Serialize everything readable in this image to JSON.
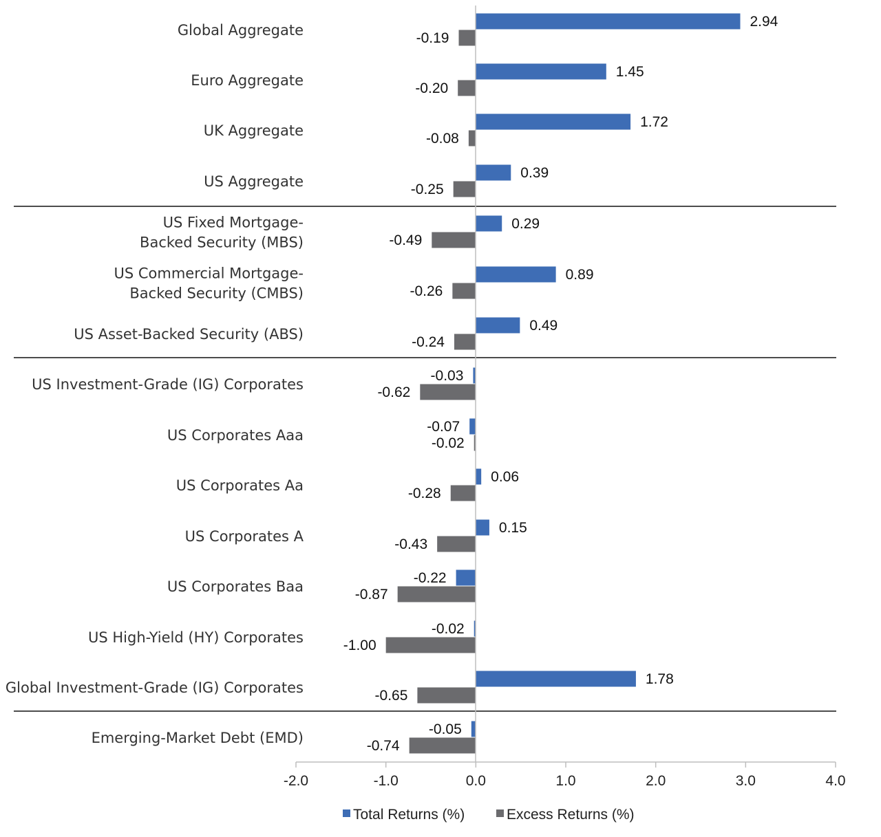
{
  "chart_data": {
    "type": "bar",
    "orientation": "horizontal",
    "title": "",
    "xlabel": "",
    "ylabel": "",
    "xlim": [
      -2.0,
      4.0
    ],
    "x_ticks": [
      "-2.0",
      "-1.0",
      "0.0",
      "1.0",
      "2.0",
      "3.0",
      "4.0"
    ],
    "x_tick_values": [
      -2,
      -1,
      0,
      1,
      2,
      3,
      4
    ],
    "grid": false,
    "legend_position": "bottom",
    "categories": [
      [
        "Global Aggregate"
      ],
      [
        "Euro Aggregate"
      ],
      [
        "UK Aggregate"
      ],
      [
        "US Aggregate"
      ],
      [
        "US Fixed Mortgage-",
        "Backed Security (MBS)"
      ],
      [
        "US Commercial Mortgage-",
        "Backed Security (CMBS)"
      ],
      [
        "US Asset-Backed Security (ABS)"
      ],
      [
        "US Investment-Grade (IG) Corporates"
      ],
      [
        "US Corporates Aaa"
      ],
      [
        "US Corporates Aa"
      ],
      [
        "US Corporates A"
      ],
      [
        "US Corporates Baa"
      ],
      [
        "US High-Yield (HY) Corporates"
      ],
      [
        "Global Investment-Grade (IG) Corporates"
      ],
      [
        "Emerging-Market Debt (EMD)"
      ]
    ],
    "series": [
      {
        "name": "Total Returns (%)",
        "color": "#3e6db5",
        "values": [
          2.94,
          1.45,
          1.72,
          0.39,
          0.29,
          0.89,
          0.49,
          -0.03,
          -0.07,
          0.06,
          0.15,
          -0.22,
          -0.02,
          1.78,
          -0.05
        ],
        "labels": [
          "2.94",
          "1.45",
          "1.72",
          "0.39",
          "0.29",
          "0.89",
          "0.49",
          "-0.03",
          "-0.07",
          "0.06",
          "0.15",
          "-0.22",
          "-0.02",
          "1.78",
          "-0.05"
        ]
      },
      {
        "name": "Excess Returns (%)",
        "color": "#6b6b6e",
        "values": [
          -0.19,
          -0.2,
          -0.08,
          -0.25,
          -0.49,
          -0.26,
          -0.24,
          -0.62,
          -0.02,
          -0.28,
          -0.43,
          -0.87,
          -1.0,
          -0.65,
          -0.74
        ],
        "labels": [
          "-0.19",
          "-0.20",
          "-0.08",
          "-0.25",
          "-0.49",
          "-0.26",
          "-0.24",
          "-0.62",
          "-0.02",
          "-0.28",
          "-0.43",
          "-0.87",
          "-1.00",
          "-0.65",
          "-0.74"
        ]
      }
    ],
    "group_separators_after": [
      3,
      6,
      13
    ]
  }
}
